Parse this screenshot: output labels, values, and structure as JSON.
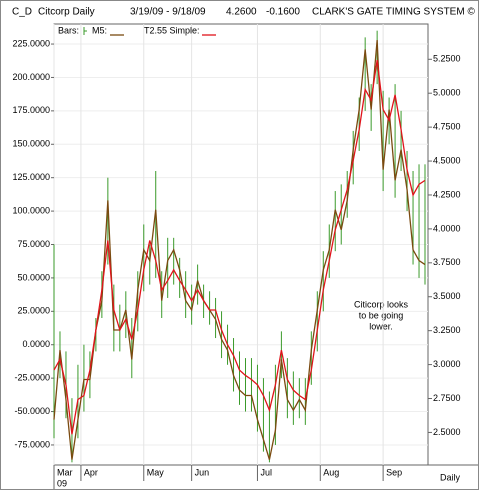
{
  "chart_data": {
    "type": "ohlc-lines",
    "symbol": "C_D",
    "title": "Citcorp Daily",
    "date_range": "3/19/09 - 9/18/09",
    "last": "4.2600",
    "change": "-0.1600",
    "system": "CLARK'S GATE TIMING SYSTEM ©",
    "annotation": [
      "Citicorp looks",
      "to be going",
      "lower."
    ],
    "year_label": "09",
    "period_label": "Daily",
    "xlim": [
      0,
      125
    ],
    "xticks": [
      {
        "value": 0,
        "label": "Mar"
      },
      {
        "value": 9,
        "label": "Apr"
      },
      {
        "value": 30,
        "label": "May"
      },
      {
        "value": 46,
        "label": "Jun"
      },
      {
        "value": 68,
        "label": "Jul"
      },
      {
        "value": 89,
        "label": "Aug"
      },
      {
        "value": 110,
        "label": "Sep"
      }
    ],
    "ylim": [
      -90,
      240
    ],
    "yticks": [
      {
        "value": 225,
        "label": "225.0000"
      },
      {
        "value": 200,
        "label": "200.0000"
      },
      {
        "value": 175,
        "label": "175.0000"
      },
      {
        "value": 150,
        "label": "150.0000"
      },
      {
        "value": 125,
        "label": "125.0000"
      },
      {
        "value": 100,
        "label": "100.0000"
      },
      {
        "value": 75,
        "label": "75.0000"
      },
      {
        "value": 50,
        "label": "50.0000"
      },
      {
        "value": 25,
        "label": "25.0000"
      },
      {
        "value": 0,
        "label": "0.0000"
      },
      {
        "value": -25,
        "label": "-25.0000"
      },
      {
        "value": -50,
        "label": "-50.0000"
      },
      {
        "value": -75,
        "label": "-75.0000"
      }
    ],
    "y2lim": [
      2.26,
      5.51
    ],
    "y2ticks": [
      {
        "value": 5.25,
        "label": "5.2500"
      },
      {
        "value": 5,
        "label": "5.0000"
      },
      {
        "value": 4.75,
        "label": "4.7500"
      },
      {
        "value": 4.5,
        "label": "4.5000"
      },
      {
        "value": 4.25,
        "label": "4.2500"
      },
      {
        "value": 4,
        "label": "4.0000"
      },
      {
        "value": 3.75,
        "label": "3.7500"
      },
      {
        "value": 3.5,
        "label": "3.5000"
      },
      {
        "value": 3.25,
        "label": "3.2500"
      },
      {
        "value": 3,
        "label": "3.0000"
      },
      {
        "value": 2.75,
        "label": "2.7500"
      },
      {
        "value": 2.5,
        "label": "2.5000"
      }
    ],
    "grid": true,
    "x": [
      0,
      2,
      4,
      6,
      8,
      10,
      12,
      14,
      16,
      18,
      20,
      22,
      24,
      26,
      28,
      30,
      32,
      34,
      36,
      38,
      40,
      42,
      44,
      46,
      48,
      50,
      52,
      54,
      56,
      58,
      60,
      62,
      64,
      66,
      68,
      70,
      72,
      74,
      76,
      78,
      80,
      82,
      84,
      86,
      88,
      90,
      92,
      94,
      96,
      98,
      100,
      102,
      104,
      106,
      108,
      110,
      112,
      114,
      116,
      118,
      120,
      122,
      124
    ],
    "bars": {
      "name": "Bars:",
      "color": "#3a9a2a",
      "high": [
        75,
        10,
        -5,
        -40,
        -15,
        0,
        -5,
        20,
        55,
        125,
        45,
        30,
        40,
        20,
        55,
        90,
        75,
        130,
        55,
        80,
        80,
        65,
        55,
        45,
        60,
        45,
        40,
        35,
        25,
        15,
        5,
        -5,
        -10,
        -10,
        -15,
        -25,
        -35,
        -15,
        10,
        -10,
        -20,
        -25,
        -25,
        10,
        40,
        70,
        90,
        115,
        120,
        130,
        160,
        185,
        230,
        195,
        235,
        190,
        185,
        195,
        175,
        145,
        130,
        135,
        135
      ],
      "low": [
        -70,
        -25,
        -55,
        -88,
        -70,
        -50,
        -40,
        -5,
        20,
        60,
        -5,
        -5,
        5,
        -25,
        10,
        40,
        45,
        50,
        20,
        35,
        45,
        35,
        20,
        15,
        30,
        20,
        15,
        5,
        -10,
        -15,
        -35,
        -45,
        -50,
        -50,
        -65,
        -80,
        -88,
        -75,
        -25,
        -55,
        -60,
        -55,
        -60,
        -30,
        -5,
        25,
        50,
        70,
        75,
        95,
        120,
        145,
        175,
        160,
        195,
        115,
        150,
        110,
        130,
        100,
        60,
        50,
        45
      ]
    },
    "series": [
      {
        "name": "M5:",
        "color": "#7a4a10",
        "values": [
          -56,
          -4,
          -41,
          -86,
          -56,
          -26,
          -26,
          11,
          33,
          108,
          11,
          11,
          26,
          -11,
          41,
          71,
          63,
          101,
          33,
          63,
          71,
          56,
          33,
          26,
          48,
          33,
          26,
          19,
          4,
          -4,
          -23,
          -34,
          -38,
          -38,
          -56,
          -71,
          -86,
          -64,
          -11,
          -41,
          -49,
          -41,
          -49,
          -4,
          26,
          56,
          71,
          101,
          86,
          108,
          146,
          176,
          221,
          176,
          228,
          131,
          176,
          123,
          146,
          116,
          71,
          63,
          60
        ]
      },
      {
        "name": "T2.55 Simple:",
        "color": "#e0141b",
        "values": [
          -19,
          -11,
          -30,
          -67,
          -41,
          -38,
          -19,
          11,
          41,
          78,
          26,
          11,
          19,
          4,
          26,
          56,
          78,
          63,
          41,
          48,
          56,
          48,
          41,
          33,
          41,
          33,
          26,
          26,
          11,
          0,
          -8,
          -19,
          -23,
          -26,
          -30,
          -38,
          -49,
          -30,
          -4,
          -26,
          -34,
          -38,
          -41,
          -19,
          11,
          41,
          63,
          86,
          101,
          116,
          138,
          161,
          191,
          183,
          213,
          176,
          168,
          187,
          161,
          131,
          112,
          120,
          123
        ]
      }
    ]
  }
}
